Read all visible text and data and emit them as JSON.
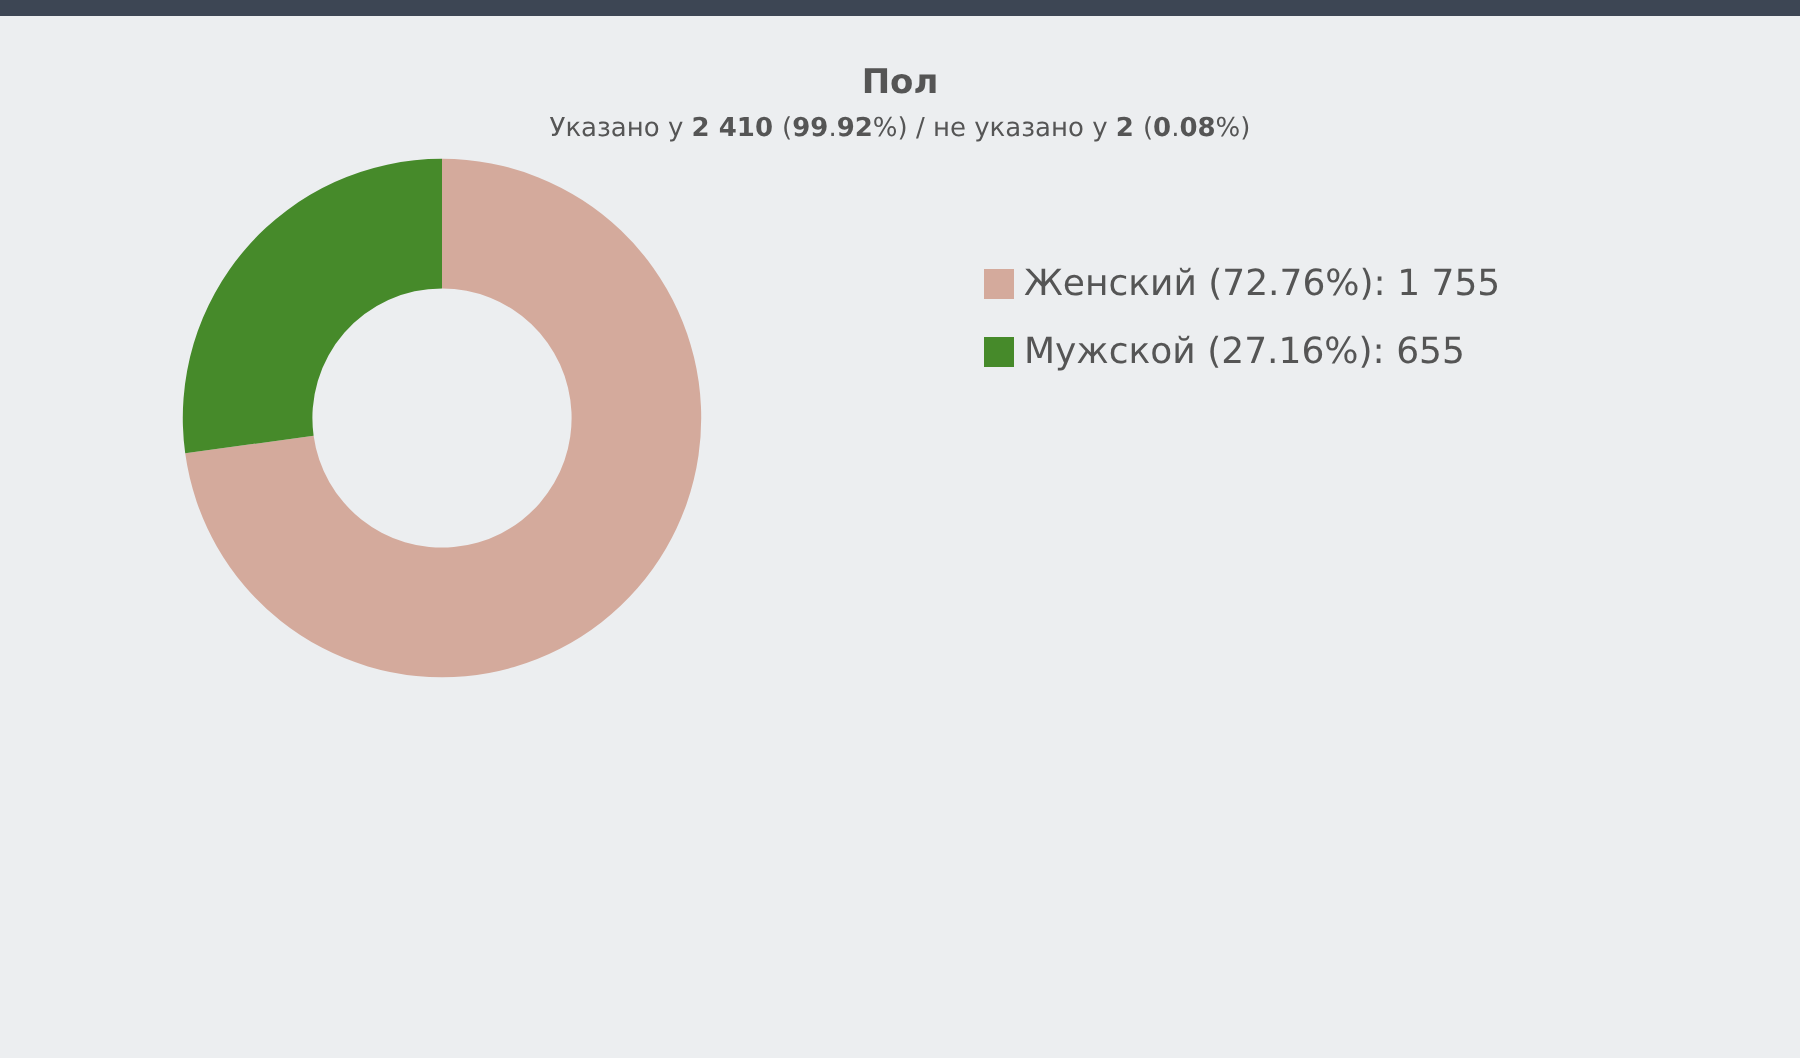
{
  "chart_data": {
    "type": "donut",
    "title": "Пол",
    "subtitle": "Указано у 2 410 (99.92%) / не указано у 2 (0.08%)",
    "categories": [
      "Женский (72.76%): 1 755",
      "Мужской (27.16%): 655"
    ],
    "values": [
      1755,
      655
    ],
    "colors": [
      "#d4aa9c",
      "#468a2a"
    ],
    "legend": "right"
  }
}
